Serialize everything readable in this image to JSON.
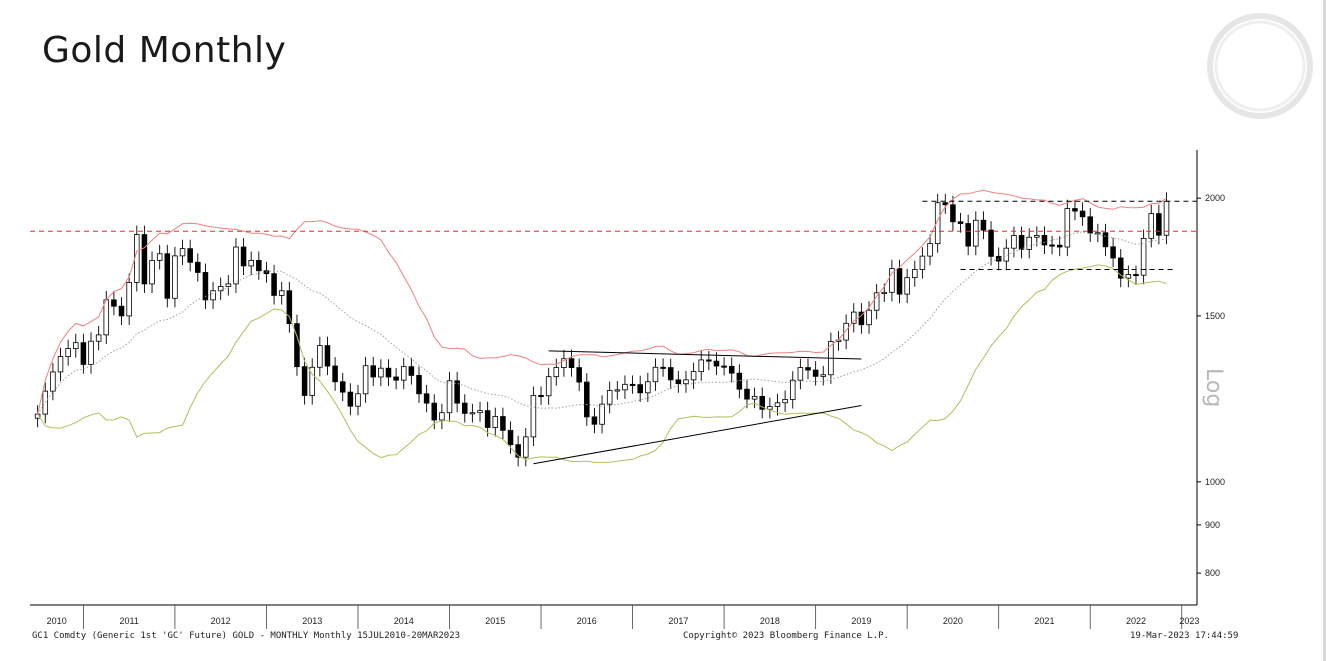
{
  "title": "Gold Monthly",
  "footer": {
    "left": "GC1 Comdty (Generic 1st 'GC' Future) GOLD - MONTHLY  Monthly 15JUL2010-20MAR2023",
    "center": "Copyright© 2023 Bloomberg Finance L.P.",
    "right": "19-Mar-2023 17:44:59"
  },
  "colors": {
    "upper_band": "#f08080",
    "middle_band": "#a0a0a0",
    "lower_band": "#b5bd5a",
    "resistance_line": "#e03030",
    "candle_up": "#ffffff",
    "candle_down": "#000000"
  },
  "chart_data": {
    "type": "candlestick",
    "title": "Gold Monthly",
    "y_scale": "log",
    "y_axis_label": "Log",
    "y_ticks": [
      800,
      900,
      1000,
      1500,
      2000
    ],
    "ylim": [
      740,
      2250
    ],
    "x_tick_labels": [
      "2010",
      "2011",
      "2012",
      "2013",
      "2014",
      "2015",
      "2016",
      "2017",
      "2018",
      "2019",
      "2020",
      "2021",
      "2022",
      "2023"
    ],
    "x_range": [
      "2010-06",
      "2023-03"
    ],
    "grid": false,
    "candles_monthly_close": {
      "start": "2010-07",
      "values": [
        1180,
        1248,
        1308,
        1358,
        1385,
        1405,
        1332,
        1410,
        1432,
        1560,
        1536,
        1500,
        1628,
        1830,
        1622,
        1718,
        1746,
        1566,
        1737,
        1768,
        1710,
        1668,
        1560,
        1595,
        1612,
        1622,
        1775,
        1695,
        1718,
        1675,
        1663,
        1577,
        1595,
        1472,
        1325,
        1235,
        1323,
        1395,
        1327,
        1277,
        1245,
        1203,
        1240,
        1328,
        1292,
        1320,
        1292,
        1282,
        1325,
        1297,
        1240,
        1212,
        1163,
        1184,
        1280,
        1212,
        1182,
        1184,
        1190,
        1142,
        1173,
        1134,
        1095,
        1062,
        1116,
        1235,
        1234,
        1293,
        1322,
        1351,
        1322,
        1276,
        1172,
        1151,
        1209,
        1250,
        1252,
        1269,
        1268,
        1243,
        1277,
        1323,
        1322,
        1283,
        1271,
        1283,
        1309,
        1347,
        1343,
        1327,
        1326,
        1304,
        1254,
        1224,
        1232,
        1194,
        1202,
        1213,
        1223,
        1282,
        1322,
        1314,
        1294,
        1299,
        1409,
        1414,
        1473,
        1514,
        1468,
        1521,
        1587,
        1589,
        1684,
        1582,
        1647,
        1680,
        1736,
        1790,
        1978,
        1968,
        1888,
        1880,
        1779,
        1895,
        1850,
        1735,
        1715,
        1770,
        1826,
        1765,
        1818,
        1826,
        1784,
        1783,
        1775,
        1950,
        1938,
        1911,
        1837,
        1838,
        1776,
        1728,
        1645,
        1660,
        1657,
        1813,
        1926,
        1827,
        1985
      ]
    },
    "overlays": [
      {
        "name": "upper_band"
      },
      {
        "name": "middle_band"
      },
      {
        "name": "lower_band"
      }
    ],
    "annotations": [
      {
        "kind": "horizontal_line",
        "style": "dashed",
        "color": "#e03030",
        "value": 1845
      },
      {
        "kind": "horizontal_line",
        "style": "dashed",
        "color": "#000000",
        "value": 1985,
        "from": "2020-03",
        "to": "2023-03"
      },
      {
        "kind": "horizontal_line",
        "style": "dashed",
        "color": "#000000",
        "value": 1680,
        "from": "2020-08",
        "to": "2022-12"
      },
      {
        "kind": "trendline",
        "color": "#000000",
        "from": {
          "x": "2016-02",
          "y": 1377
        },
        "to": {
          "x": "2019-07",
          "y": 1350
        }
      },
      {
        "kind": "trendline",
        "color": "#000000",
        "from": {
          "x": "2015-12",
          "y": 1045
        },
        "to": {
          "x": "2019-07",
          "y": 1205
        }
      }
    ]
  }
}
